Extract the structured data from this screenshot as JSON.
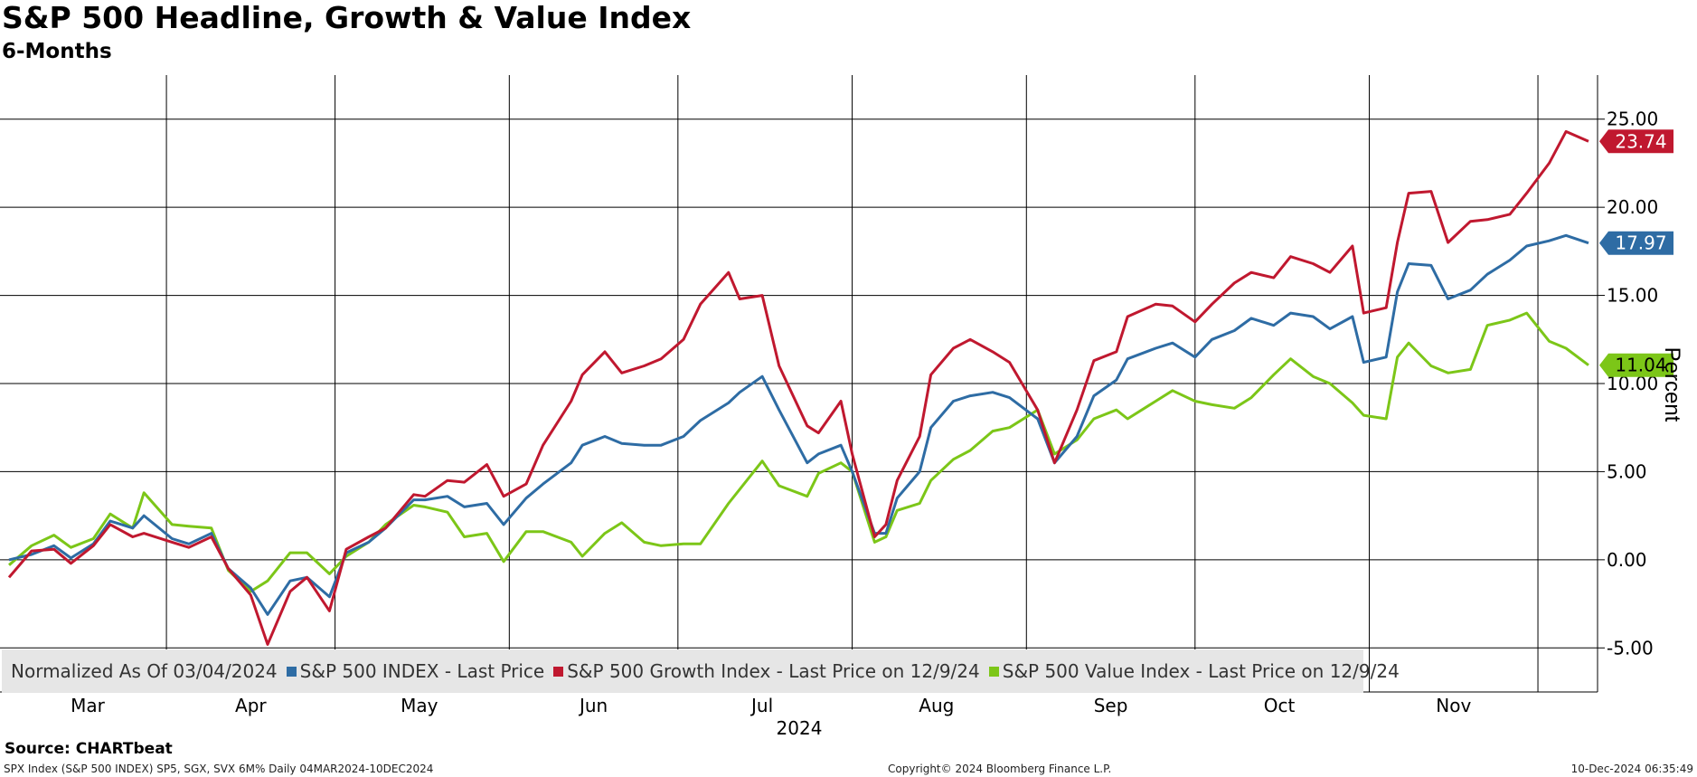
{
  "header": {
    "title": "S&P 500 Headline, Growth & Value Index",
    "subtitle": "6-Months"
  },
  "footer": {
    "source": "Source: CHARTbeat",
    "left": "SPX Index (S&P 500 INDEX) SP5, SGX, SVX 6M%  Daily 04MAR2024-10DEC2024",
    "center": "Copyright© 2024 Bloomberg Finance L.P.",
    "right": "10-Dec-2024 06:35:49"
  },
  "chart_data": {
    "type": "line",
    "title": "S&P 500 Headline, Growth & Value Index",
    "subtitle": "6-Months",
    "ylabel": "Percent",
    "xlabel": "2024",
    "ylim": [
      -7.5,
      27.5
    ],
    "yticks": [
      -5,
      0,
      5,
      10,
      15,
      20,
      25
    ],
    "ytick_labels": [
      "-5.00",
      "0.00",
      "5.00",
      "10.00",
      "15.00",
      "20.00",
      "25.00"
    ],
    "x_range": [
      "2024-03-04",
      "2024-12-10"
    ],
    "month_labels": [
      "Mar",
      "Apr",
      "May",
      "Jun",
      "Jul",
      "Aug",
      "Sep",
      "Oct",
      "Nov"
    ],
    "grid": true,
    "legend_position": "bottom-left",
    "legend_prefix": "Normalized As Of 03/04/2024",
    "series": [
      {
        "name": "S&P 500 INDEX - Last Price",
        "color": "#2e6ca4",
        "last_value_label": "17.97",
        "points": [
          [
            "2024-03-04",
            0.0
          ],
          [
            "2024-03-08",
            0.3
          ],
          [
            "2024-03-12",
            0.8
          ],
          [
            "2024-03-15",
            0.1
          ],
          [
            "2024-03-19",
            0.9
          ],
          [
            "2024-03-22",
            2.2
          ],
          [
            "2024-03-26",
            1.8
          ],
          [
            "2024-03-28",
            2.5
          ],
          [
            "2024-04-02",
            1.2
          ],
          [
            "2024-04-05",
            0.9
          ],
          [
            "2024-04-09",
            1.5
          ],
          [
            "2024-04-12",
            -0.5
          ],
          [
            "2024-04-16",
            -1.6
          ],
          [
            "2024-04-19",
            -3.1
          ],
          [
            "2024-04-23",
            -1.2
          ],
          [
            "2024-04-26",
            -1.0
          ],
          [
            "2024-04-30",
            -2.1
          ],
          [
            "2024-05-03",
            0.4
          ],
          [
            "2024-05-07",
            1.0
          ],
          [
            "2024-05-10",
            1.8
          ],
          [
            "2024-05-15",
            3.4
          ],
          [
            "2024-05-17",
            3.4
          ],
          [
            "2024-05-21",
            3.6
          ],
          [
            "2024-05-24",
            3.0
          ],
          [
            "2024-05-28",
            3.2
          ],
          [
            "2024-05-31",
            2.0
          ],
          [
            "2024-06-04",
            3.5
          ],
          [
            "2024-06-07",
            4.3
          ],
          [
            "2024-06-12",
            5.5
          ],
          [
            "2024-06-14",
            6.5
          ],
          [
            "2024-06-18",
            7.0
          ],
          [
            "2024-06-21",
            6.6
          ],
          [
            "2024-06-25",
            6.5
          ],
          [
            "2024-06-28",
            6.5
          ],
          [
            "2024-07-02",
            7.0
          ],
          [
            "2024-07-05",
            7.9
          ],
          [
            "2024-07-10",
            8.9
          ],
          [
            "2024-07-12",
            9.5
          ],
          [
            "2024-07-16",
            10.4
          ],
          [
            "2024-07-19",
            8.5
          ],
          [
            "2024-07-24",
            5.5
          ],
          [
            "2024-07-26",
            6.0
          ],
          [
            "2024-07-30",
            6.5
          ],
          [
            "2024-08-01",
            5.0
          ],
          [
            "2024-08-05",
            1.5
          ],
          [
            "2024-08-07",
            1.5
          ],
          [
            "2024-08-09",
            3.5
          ],
          [
            "2024-08-13",
            5.0
          ],
          [
            "2024-08-15",
            7.5
          ],
          [
            "2024-08-19",
            9.0
          ],
          [
            "2024-08-22",
            9.3
          ],
          [
            "2024-08-26",
            9.5
          ],
          [
            "2024-08-29",
            9.2
          ],
          [
            "2024-09-03",
            8.0
          ],
          [
            "2024-09-06",
            5.5
          ],
          [
            "2024-09-10",
            7.0
          ],
          [
            "2024-09-13",
            9.3
          ],
          [
            "2024-09-17",
            10.2
          ],
          [
            "2024-09-19",
            11.4
          ],
          [
            "2024-09-24",
            12.0
          ],
          [
            "2024-09-27",
            12.3
          ],
          [
            "2024-10-01",
            11.5
          ],
          [
            "2024-10-04",
            12.5
          ],
          [
            "2024-10-08",
            13.0
          ],
          [
            "2024-10-11",
            13.7
          ],
          [
            "2024-10-15",
            13.3
          ],
          [
            "2024-10-18",
            14.0
          ],
          [
            "2024-10-22",
            13.8
          ],
          [
            "2024-10-25",
            13.1
          ],
          [
            "2024-10-29",
            13.8
          ],
          [
            "2024-10-31",
            11.2
          ],
          [
            "2024-11-04",
            11.5
          ],
          [
            "2024-11-06",
            15.2
          ],
          [
            "2024-11-08",
            16.8
          ],
          [
            "2024-11-12",
            16.7
          ],
          [
            "2024-11-15",
            14.8
          ],
          [
            "2024-11-19",
            15.3
          ],
          [
            "2024-11-22",
            16.2
          ],
          [
            "2024-11-26",
            17.0
          ],
          [
            "2024-11-29",
            17.8
          ],
          [
            "2024-12-03",
            18.1
          ],
          [
            "2024-12-06",
            18.4
          ],
          [
            "2024-12-10",
            17.97
          ]
        ]
      },
      {
        "name": "S&P 500 Growth Index - Last Price on 12/9/24",
        "color": "#c0182f",
        "last_value_label": "23.74",
        "points": [
          [
            "2024-03-04",
            -1.0
          ],
          [
            "2024-03-08",
            0.5
          ],
          [
            "2024-03-12",
            0.6
          ],
          [
            "2024-03-15",
            -0.2
          ],
          [
            "2024-03-19",
            0.8
          ],
          [
            "2024-03-22",
            2.0
          ],
          [
            "2024-03-26",
            1.3
          ],
          [
            "2024-03-28",
            1.5
          ],
          [
            "2024-04-02",
            1.0
          ],
          [
            "2024-04-05",
            0.7
          ],
          [
            "2024-04-09",
            1.3
          ],
          [
            "2024-04-12",
            -0.5
          ],
          [
            "2024-04-16",
            -2.0
          ],
          [
            "2024-04-19",
            -4.8
          ],
          [
            "2024-04-23",
            -1.8
          ],
          [
            "2024-04-26",
            -1.0
          ],
          [
            "2024-04-30",
            -2.9
          ],
          [
            "2024-05-03",
            0.6
          ],
          [
            "2024-05-07",
            1.3
          ],
          [
            "2024-05-10",
            1.8
          ],
          [
            "2024-05-15",
            3.7
          ],
          [
            "2024-05-17",
            3.6
          ],
          [
            "2024-05-21",
            4.5
          ],
          [
            "2024-05-24",
            4.4
          ],
          [
            "2024-05-28",
            5.4
          ],
          [
            "2024-05-31",
            3.6
          ],
          [
            "2024-06-04",
            4.3
          ],
          [
            "2024-06-07",
            6.5
          ],
          [
            "2024-06-12",
            9.0
          ],
          [
            "2024-06-14",
            10.5
          ],
          [
            "2024-06-18",
            11.8
          ],
          [
            "2024-06-21",
            10.6
          ],
          [
            "2024-06-25",
            11.0
          ],
          [
            "2024-06-28",
            11.4
          ],
          [
            "2024-07-02",
            12.5
          ],
          [
            "2024-07-05",
            14.5
          ],
          [
            "2024-07-10",
            16.3
          ],
          [
            "2024-07-12",
            14.8
          ],
          [
            "2024-07-16",
            15.0
          ],
          [
            "2024-07-19",
            11.0
          ],
          [
            "2024-07-24",
            7.6
          ],
          [
            "2024-07-26",
            7.2
          ],
          [
            "2024-07-30",
            9.0
          ],
          [
            "2024-08-01",
            6.0
          ],
          [
            "2024-08-05",
            1.3
          ],
          [
            "2024-08-07",
            2.0
          ],
          [
            "2024-08-09",
            4.5
          ],
          [
            "2024-08-13",
            7.0
          ],
          [
            "2024-08-15",
            10.5
          ],
          [
            "2024-08-19",
            12.0
          ],
          [
            "2024-08-22",
            12.5
          ],
          [
            "2024-08-26",
            11.8
          ],
          [
            "2024-08-29",
            11.2
          ],
          [
            "2024-09-03",
            8.5
          ],
          [
            "2024-09-06",
            5.5
          ],
          [
            "2024-09-10",
            8.5
          ],
          [
            "2024-09-13",
            11.3
          ],
          [
            "2024-09-17",
            11.8
          ],
          [
            "2024-09-19",
            13.8
          ],
          [
            "2024-09-24",
            14.5
          ],
          [
            "2024-09-27",
            14.4
          ],
          [
            "2024-10-01",
            13.5
          ],
          [
            "2024-10-04",
            14.5
          ],
          [
            "2024-10-08",
            15.7
          ],
          [
            "2024-10-11",
            16.3
          ],
          [
            "2024-10-15",
            16.0
          ],
          [
            "2024-10-18",
            17.2
          ],
          [
            "2024-10-22",
            16.8
          ],
          [
            "2024-10-25",
            16.3
          ],
          [
            "2024-10-29",
            17.8
          ],
          [
            "2024-10-31",
            14.0
          ],
          [
            "2024-11-04",
            14.3
          ],
          [
            "2024-11-06",
            18.0
          ],
          [
            "2024-11-08",
            20.8
          ],
          [
            "2024-11-12",
            20.9
          ],
          [
            "2024-11-15",
            18.0
          ],
          [
            "2024-11-19",
            19.2
          ],
          [
            "2024-11-22",
            19.3
          ],
          [
            "2024-11-26",
            19.6
          ],
          [
            "2024-11-29",
            20.8
          ],
          [
            "2024-12-03",
            22.5
          ],
          [
            "2024-12-06",
            24.3
          ],
          [
            "2024-12-10",
            23.74
          ]
        ]
      },
      {
        "name": "S&P 500 Value Index - Last Price on 12/9/24",
        "color": "#7cc618",
        "last_value_label": "11.04",
        "points": [
          [
            "2024-03-04",
            -0.3
          ],
          [
            "2024-03-08",
            0.8
          ],
          [
            "2024-03-12",
            1.4
          ],
          [
            "2024-03-15",
            0.7
          ],
          [
            "2024-03-19",
            1.2
          ],
          [
            "2024-03-22",
            2.6
          ],
          [
            "2024-03-26",
            1.8
          ],
          [
            "2024-03-28",
            3.8
          ],
          [
            "2024-04-02",
            2.0
          ],
          [
            "2024-04-05",
            1.9
          ],
          [
            "2024-04-09",
            1.8
          ],
          [
            "2024-04-12",
            -0.6
          ],
          [
            "2024-04-16",
            -1.8
          ],
          [
            "2024-04-19",
            -1.2
          ],
          [
            "2024-04-23",
            0.4
          ],
          [
            "2024-04-26",
            0.4
          ],
          [
            "2024-04-30",
            -0.8
          ],
          [
            "2024-05-03",
            0.2
          ],
          [
            "2024-05-07",
            1.0
          ],
          [
            "2024-05-10",
            2.0
          ],
          [
            "2024-05-15",
            3.1
          ],
          [
            "2024-05-17",
            3.0
          ],
          [
            "2024-05-21",
            2.7
          ],
          [
            "2024-05-24",
            1.3
          ],
          [
            "2024-05-28",
            1.5
          ],
          [
            "2024-05-31",
            -0.1
          ],
          [
            "2024-06-04",
            1.6
          ],
          [
            "2024-06-07",
            1.6
          ],
          [
            "2024-06-12",
            1.0
          ],
          [
            "2024-06-14",
            0.2
          ],
          [
            "2024-06-18",
            1.5
          ],
          [
            "2024-06-21",
            2.1
          ],
          [
            "2024-06-25",
            1.0
          ],
          [
            "2024-06-28",
            0.8
          ],
          [
            "2024-07-02",
            0.9
          ],
          [
            "2024-07-05",
            0.9
          ],
          [
            "2024-07-10",
            3.2
          ],
          [
            "2024-07-12",
            4.0
          ],
          [
            "2024-07-16",
            5.6
          ],
          [
            "2024-07-19",
            4.2
          ],
          [
            "2024-07-24",
            3.6
          ],
          [
            "2024-07-26",
            4.9
          ],
          [
            "2024-07-30",
            5.5
          ],
          [
            "2024-08-01",
            5.0
          ],
          [
            "2024-08-05",
            1.0
          ],
          [
            "2024-08-07",
            1.3
          ],
          [
            "2024-08-09",
            2.8
          ],
          [
            "2024-08-13",
            3.2
          ],
          [
            "2024-08-15",
            4.5
          ],
          [
            "2024-08-19",
            5.7
          ],
          [
            "2024-08-22",
            6.2
          ],
          [
            "2024-08-26",
            7.3
          ],
          [
            "2024-08-29",
            7.5
          ],
          [
            "2024-09-03",
            8.5
          ],
          [
            "2024-09-06",
            6.0
          ],
          [
            "2024-09-10",
            6.8
          ],
          [
            "2024-09-13",
            8.0
          ],
          [
            "2024-09-17",
            8.5
          ],
          [
            "2024-09-19",
            8.0
          ],
          [
            "2024-09-24",
            9.0
          ],
          [
            "2024-09-27",
            9.6
          ],
          [
            "2024-10-01",
            9.0
          ],
          [
            "2024-10-04",
            8.8
          ],
          [
            "2024-10-08",
            8.6
          ],
          [
            "2024-10-11",
            9.2
          ],
          [
            "2024-10-15",
            10.5
          ],
          [
            "2024-10-18",
            11.4
          ],
          [
            "2024-10-22",
            10.4
          ],
          [
            "2024-10-25",
            10.0
          ],
          [
            "2024-10-29",
            8.9
          ],
          [
            "2024-10-31",
            8.2
          ],
          [
            "2024-11-04",
            8.0
          ],
          [
            "2024-11-06",
            11.5
          ],
          [
            "2024-11-08",
            12.3
          ],
          [
            "2024-11-12",
            11.0
          ],
          [
            "2024-11-15",
            10.6
          ],
          [
            "2024-11-19",
            10.8
          ],
          [
            "2024-11-22",
            13.3
          ],
          [
            "2024-11-26",
            13.6
          ],
          [
            "2024-11-29",
            14.0
          ],
          [
            "2024-12-03",
            12.4
          ],
          [
            "2024-12-06",
            12.0
          ],
          [
            "2024-12-10",
            11.04
          ]
        ]
      }
    ]
  }
}
